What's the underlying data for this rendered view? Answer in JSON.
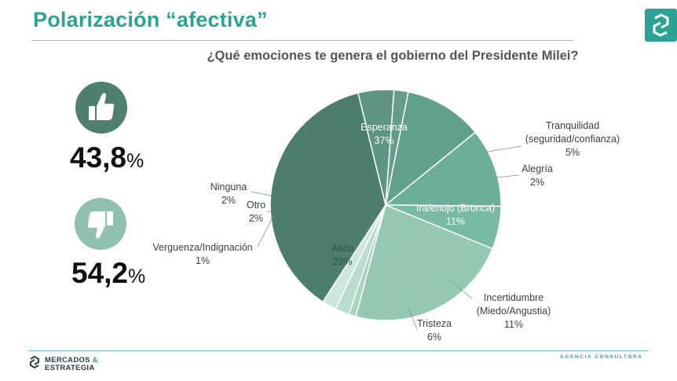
{
  "header": {
    "title": "Polarización “afectiva”"
  },
  "question": "¿Qué emociones te genera el gobierno del Presidente Milei?",
  "approval": {
    "positive_value": "43,8",
    "negative_value": "54,2",
    "percent_symbol": "%"
  },
  "colors": {
    "accent": "#2aa394"
  },
  "icons": {
    "positive": "thumbs-up-icon",
    "negative": "thumbs-down-icon",
    "corner": "brand-logo-icon"
  },
  "chart_data": {
    "type": "pie",
    "title": "¿Qué emociones te genera el gobierno del Presidente Milei?",
    "slices": [
      {
        "name": "Esperanza",
        "value": 37,
        "label_lines": [
          "Esperanza"
        ],
        "value_label": "37%",
        "color": "#4c7d6d"
      },
      {
        "name": "Tranquilidad (seguridad/confianza)",
        "value": 5,
        "label_lines": [
          "Tranquilidad",
          "(seguridad/confianza)"
        ],
        "value_label": "5%",
        "color": "#5e9483"
      },
      {
        "name": "Alegría",
        "value": 2,
        "label_lines": [
          "Alegría"
        ],
        "value_label": "2%",
        "color": "#669d8a"
      },
      {
        "name": "Ira/enojo (Bronca)",
        "value": 11,
        "label_lines": [
          "Ira/enojo (Bronca)"
        ],
        "value_label": "11%",
        "color": "#60a08c"
      },
      {
        "name": "Incertidumbre (Miedo/Angustia)",
        "value": 11,
        "label_lines": [
          "Incertidumbre",
          "(Miedo/Angustia)"
        ],
        "value_label": "11%",
        "color": "#6caf99"
      },
      {
        "name": "Tristeza",
        "value": 6,
        "label_lines": [
          "Tristeza"
        ],
        "value_label": "6%",
        "color": "#78baa4"
      },
      {
        "name": "Asco",
        "value": 23,
        "label_lines": [
          "Asco"
        ],
        "value_label": "23%",
        "color": "#94c8b3"
      },
      {
        "name": "Verguenza/Indignación",
        "value": 1,
        "label_lines": [
          "Verguenza/Indignación"
        ],
        "value_label": "1%",
        "color": "#a9d4c2"
      },
      {
        "name": "Otro",
        "value": 2,
        "label_lines": [
          "Otro"
        ],
        "value_label": "2%",
        "color": "#b8dccd"
      },
      {
        "name": "Ninguna",
        "value": 2,
        "label_lines": [
          "Ninguna"
        ],
        "value_label": "2%",
        "color": "#cde7dc"
      }
    ]
  },
  "footer": {
    "brand_line1": "MERCADOS",
    "brand_amp": "&",
    "brand_line2": "ESTRATEGIA",
    "agency": "AGENCIA CONSULTORA"
  }
}
